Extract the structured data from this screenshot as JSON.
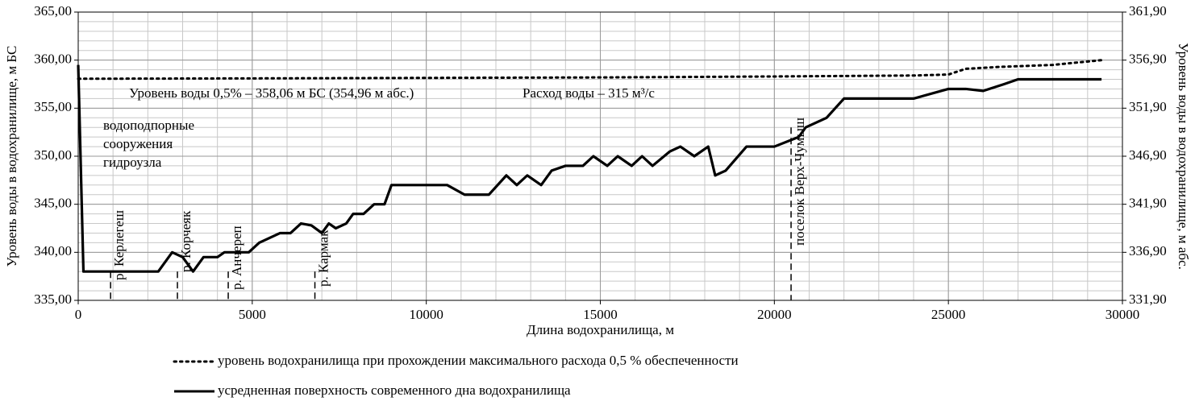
{
  "chart_data": {
    "type": "line",
    "xlabel": "Длина водохранилища, м",
    "ylabel": "Уровень воды в водохранилище, м БС",
    "y2label": "Уровень воды в водохранилище, м абс.",
    "xlim": [
      0,
      30000
    ],
    "xticks": [
      0,
      5000,
      10000,
      15000,
      20000,
      25000,
      30000
    ],
    "ylim": [
      335,
      365
    ],
    "yticks": [
      {
        "value": 335,
        "label": "335,00"
      },
      {
        "value": 340,
        "label": "340,00"
      },
      {
        "value": 345,
        "label": "345,00"
      },
      {
        "value": 350,
        "label": "350,00"
      },
      {
        "value": 355,
        "label": "355,00"
      },
      {
        "value": 360,
        "label": "360,00"
      },
      {
        "value": 365,
        "label": "365,00"
      }
    ],
    "y2lim": [
      331.9,
      361.9
    ],
    "y2ticks": [
      {
        "value": 331.9,
        "label": "331,90"
      },
      {
        "value": 336.9,
        "label": "336,90"
      },
      {
        "value": 341.9,
        "label": "341,90"
      },
      {
        "value": 346.9,
        "label": "346,90"
      },
      {
        "value": 351.9,
        "label": "351,90"
      },
      {
        "value": 356.9,
        "label": "356,90"
      },
      {
        "value": 361.9,
        "label": "361,90"
      }
    ],
    "grid": true,
    "minor_grid": {
      "x": 1000,
      "y": 1
    },
    "series": [
      {
        "name": "уровень водохранилища при прохождении максимального расхода 0,5 % обеспеченности",
        "color": "#000000",
        "style": "dotted",
        "x": [
          0,
          5000,
          10000,
          15000,
          20000,
          24000,
          25000,
          25500,
          26500,
          28000,
          29400
        ],
        "values": [
          358.06,
          358.1,
          358.15,
          358.2,
          358.3,
          358.4,
          358.5,
          359.1,
          359.3,
          359.5,
          360.0
        ]
      },
      {
        "name": "усредненная поверхность современного дна водохранилища",
        "color": "#000000",
        "style": "solid",
        "x": [
          0,
          150,
          2300,
          2700,
          3000,
          3300,
          3600,
          4000,
          4200,
          4900,
          5200,
          5500,
          5800,
          6100,
          6400,
          6700,
          7000,
          7200,
          7400,
          7700,
          7900,
          8200,
          8500,
          8800,
          9000,
          10000,
          10600,
          11100,
          11800,
          12300,
          12600,
          12900,
          13300,
          13600,
          14000,
          14500,
          14800,
          15200,
          15500,
          15900,
          16200,
          16500,
          17000,
          17300,
          17700,
          18100,
          18300,
          18600,
          19200,
          20000,
          20700,
          20900,
          21500,
          22000,
          24000,
          25000,
          25500,
          26000,
          26600,
          27000,
          29400
        ],
        "values": [
          359.5,
          338,
          338,
          340,
          339.5,
          338,
          339.5,
          339.5,
          340,
          340,
          341,
          341.5,
          342,
          342,
          343,
          342.8,
          342,
          343,
          342.5,
          343,
          344,
          344,
          345,
          345,
          347,
          347,
          347,
          346,
          346,
          348,
          347,
          348,
          347,
          348.5,
          349,
          349,
          350,
          349,
          350,
          349,
          350,
          349,
          350.5,
          351,
          350,
          351,
          348,
          348.5,
          351,
          351,
          352,
          353,
          354,
          356,
          356,
          357,
          357,
          356.8,
          357.5,
          358,
          358
        ]
      }
    ],
    "annotations": [
      {
        "text": "р. Керлегеш",
        "x": 930
      },
      {
        "text": "р. Корчеяк",
        "x": 2850
      },
      {
        "text": "р. Анчереп",
        "x": 4310
      },
      {
        "text": "р. Кармак",
        "x": 6800
      },
      {
        "text": "поселок Верх-Чумыш",
        "x": 20480
      }
    ],
    "level_note": "Уровень воды 0,5% – 358,06 м БС (354,96 м абс.)",
    "flow_note": "Расход  воды – 315 м³/с",
    "dam_label": [
      "водоподпорные",
      "сооружения",
      "гидроузла"
    ]
  }
}
